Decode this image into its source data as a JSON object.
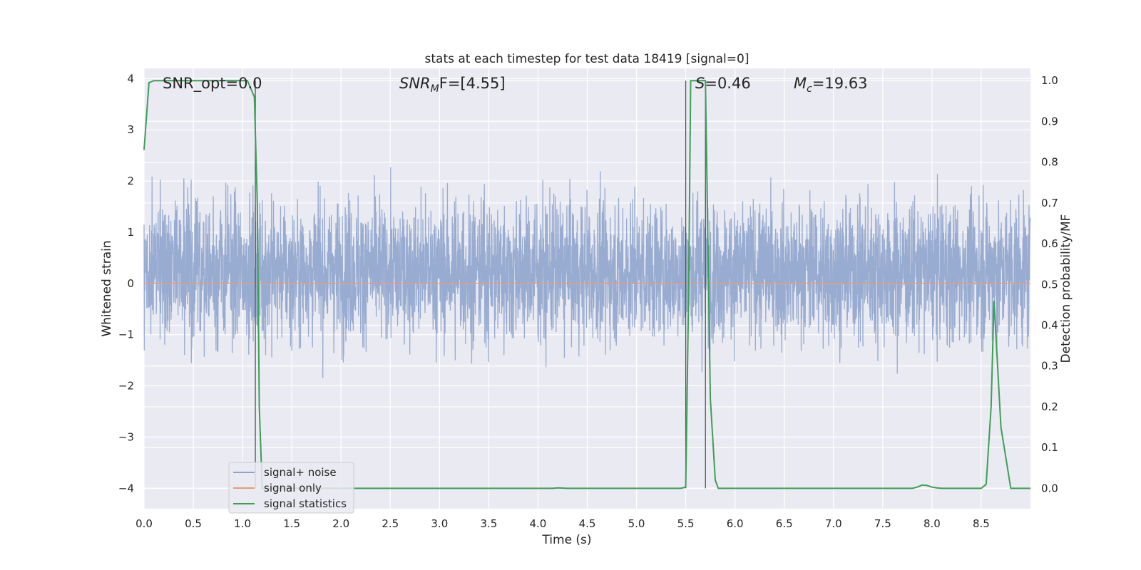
{
  "chart_data": {
    "type": "line",
    "title": "stats at each timestep for test data 18419 [signal=0]",
    "xlabel": "Time (s)",
    "ylabel": "Whitened strain",
    "ylabel_right": "Detection probability/MF",
    "xlim": [
      0.0,
      9.0
    ],
    "ylim": [
      -4.4,
      4.2
    ],
    "ylim_right": [
      -0.05,
      1.03
    ],
    "x_ticks": [
      "0.0",
      "0.5",
      "1.0",
      "1.5",
      "2.0",
      "2.5",
      "3.0",
      "3.5",
      "4.0",
      "4.5",
      "5.0",
      "5.5",
      "6.0",
      "6.5",
      "7.0",
      "7.5",
      "8.0",
      "8.5"
    ],
    "y_ticks": [
      "−4",
      "−3",
      "−2",
      "−1",
      "0",
      "1",
      "2",
      "3",
      "4"
    ],
    "y_right_ticks": [
      "0.0",
      "0.1",
      "0.2",
      "0.3",
      "0.4",
      "0.5",
      "0.6",
      "0.7",
      "0.8",
      "0.9",
      "1.0"
    ],
    "grid": true,
    "legend_position": "lower-left",
    "annotations": {
      "snr_opt": "SNR_opt=0.0",
      "snr_mf": "SNR",
      "snr_mf_sub": "M",
      "snr_mf_rest": "F=[4.55]",
      "s_label": "S",
      "s_rest": "=0.46",
      "mc_label": "M",
      "mc_sub": "c",
      "mc_rest": "=19.63"
    },
    "series": [
      {
        "name": "signal+ noise",
        "color": "#8fa4cc",
        "description_values": "noise fluctuating mostly between -1.8 and 2.4, peaks to ~3.8 and dips to ~-4"
      },
      {
        "name": "signal only",
        "color": "#e49b7c",
        "x": [
          0.0,
          9.0
        ],
        "y": [
          0.0,
          0.0
        ]
      },
      {
        "name": "signal statistics",
        "color": "#3f9e55",
        "axis": "right",
        "x": [
          0.0,
          0.05,
          0.1,
          0.2,
          1.0,
          1.05,
          1.12,
          1.15,
          1.17,
          1.2,
          1.25,
          4.15,
          4.2,
          4.3,
          5.45,
          5.5,
          5.53,
          5.55,
          5.58,
          5.63,
          5.7,
          5.75,
          5.8,
          5.83,
          7.8,
          7.85,
          7.9,
          7.95,
          8.0,
          8.05,
          8.1,
          8.5,
          8.55,
          8.6,
          8.63,
          8.7,
          8.8,
          8.9,
          9.0
        ],
        "y": [
          0.83,
          0.995,
          1.0,
          1.0,
          1.0,
          1.0,
          0.96,
          0.7,
          0.2,
          0.0,
          0.0,
          0.0,
          0.001,
          0.0,
          0.0,
          0.003,
          0.5,
          1.0,
          1.0,
          1.0,
          1.0,
          0.22,
          0.02,
          0.0,
          0.0,
          0.003,
          0.008,
          0.007,
          0.003,
          0.001,
          0.0,
          0.0,
          0.01,
          0.2,
          0.46,
          0.15,
          0.0,
          0.0,
          0.0
        ]
      }
    ],
    "vertical_lines_x": [
      1.13,
      5.5,
      5.7
    ]
  },
  "legend": {
    "items": [
      "signal+ noise",
      "signal only",
      "signal statistics"
    ]
  }
}
